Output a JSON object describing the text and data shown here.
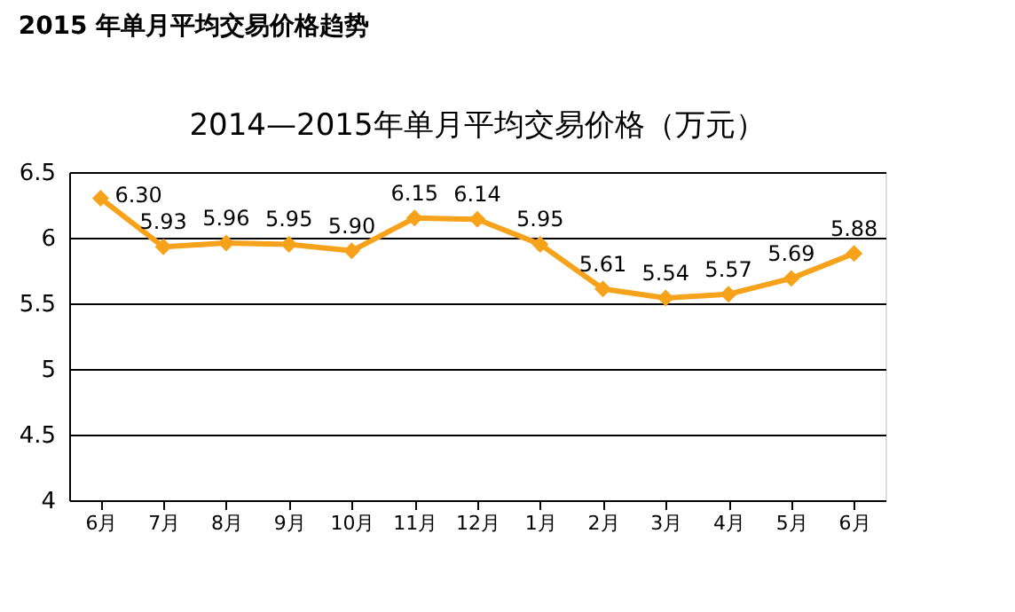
{
  "chart_data": {
    "type": "line",
    "title": "2015 年单月平均交易价格趋势",
    "subtitle": "2014—2015年单月平均交易价格（万元）",
    "categories": [
      "6月",
      "7月",
      "8月",
      "9月",
      "10月",
      "11月",
      "12月",
      "1月",
      "2月",
      "3月",
      "4月",
      "5月",
      "6月"
    ],
    "series": [
      {
        "color": "#f7a21b",
        "values": [
          6.3,
          5.93,
          5.96,
          5.95,
          5.9,
          6.15,
          6.14,
          5.95,
          5.61,
          5.54,
          5.57,
          5.69,
          5.88
        ],
        "value_labels": [
          "6.30",
          "5.93",
          "5.96",
          "5.95",
          "5.90",
          "6.15",
          "6.14",
          "5.95",
          "5.61",
          "5.54",
          "5.57",
          "5.69",
          "5.88"
        ]
      }
    ],
    "ylim": [
      4,
      6.5
    ],
    "yticks": [
      4,
      4.5,
      5,
      5.5,
      6,
      6.5
    ],
    "grid": "y",
    "marker": "diamond",
    "line_style": "solid"
  }
}
